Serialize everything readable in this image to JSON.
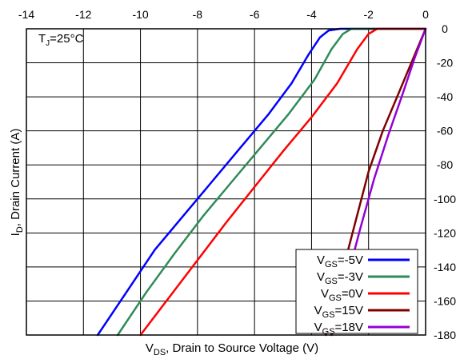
{
  "chart_data": {
    "type": "line",
    "title": "",
    "annotation": "T_J=25°C",
    "annotation_parts": {
      "base": "T",
      "sub": "J",
      "rest": "=25°C"
    },
    "xlabel": "V_DS, Drain to Source Voltage (V)",
    "xlabel_parts": {
      "base": "V",
      "sub": "DS",
      "rest": ", Drain to Source Voltage (V)"
    },
    "ylabel": "I_D, Drain Current (A)",
    "ylabel_parts": {
      "base": "I",
      "sub": "D",
      "rest": ", Drain Current (A)"
    },
    "xlim": [
      -14,
      0
    ],
    "ylim": [
      -180,
      0
    ],
    "x_ticks": [
      "-14",
      "-12",
      "-10",
      "-8",
      "-6",
      "-4",
      "-2",
      "0"
    ],
    "y_ticks": [
      "0",
      "-20",
      "-40",
      "-60",
      "-80",
      "-100",
      "-120",
      "-140",
      "-160",
      "-180"
    ],
    "x_tick_values": [
      -14,
      -12,
      -10,
      -8,
      -6,
      -4,
      -2,
      0
    ],
    "y_tick_values": [
      0,
      -20,
      -40,
      -60,
      -80,
      -100,
      -120,
      -140,
      -160,
      -180
    ],
    "grid": true,
    "legend_position": "bottom-right",
    "series": [
      {
        "name": "V_GS=-5V",
        "label_parts": {
          "base": "V",
          "sub": "GS",
          "rest": "=-5V"
        },
        "color": "#0000ff",
        "points": [
          [
            -11.5,
            -180
          ],
          [
            -10.5,
            -155
          ],
          [
            -9.5,
            -130
          ],
          [
            -8.5,
            -110
          ],
          [
            -7.5,
            -90
          ],
          [
            -6.5,
            -70
          ],
          [
            -5.5,
            -50
          ],
          [
            -4.7,
            -32
          ],
          [
            -4.1,
            -15
          ],
          [
            -3.7,
            -5
          ],
          [
            -3.4,
            -1
          ],
          [
            -3.0,
            0
          ],
          [
            0,
            0
          ]
        ]
      },
      {
        "name": "V_GS=-3V",
        "label_parts": {
          "base": "V",
          "sub": "GS",
          "rest": "=-3V"
        },
        "color": "#2e8b57",
        "points": [
          [
            -10.8,
            -180
          ],
          [
            -9.8,
            -155
          ],
          [
            -8.8,
            -132
          ],
          [
            -7.8,
            -110
          ],
          [
            -6.8,
            -90
          ],
          [
            -5.8,
            -70
          ],
          [
            -4.8,
            -50
          ],
          [
            -3.9,
            -30
          ],
          [
            -3.3,
            -12
          ],
          [
            -2.9,
            -3
          ],
          [
            -2.6,
            0
          ],
          [
            0,
            0
          ]
        ]
      },
      {
        "name": "V_GS=0V",
        "label_parts": {
          "base": "V",
          "sub": "GS",
          "rest": "=0V"
        },
        "color": "#ff0000",
        "points": [
          [
            -10.0,
            -180
          ],
          [
            -9.0,
            -158
          ],
          [
            -8.0,
            -136
          ],
          [
            -7.0,
            -114
          ],
          [
            -6.0,
            -93
          ],
          [
            -5.0,
            -72
          ],
          [
            -4.0,
            -52
          ],
          [
            -3.1,
            -32
          ],
          [
            -2.4,
            -12
          ],
          [
            -2.0,
            -3
          ],
          [
            -1.7,
            0
          ],
          [
            0,
            0
          ]
        ]
      },
      {
        "name": "V_GS=15V",
        "label_parts": {
          "base": "V",
          "sub": "GS",
          "rest": "=15V"
        },
        "color": "#800000",
        "points": [
          [
            -3.5,
            -180
          ],
          [
            -3.0,
            -148
          ],
          [
            -2.5,
            -116
          ],
          [
            -2.0,
            -84
          ],
          [
            -1.5,
            -60
          ],
          [
            -1.0,
            -40
          ],
          [
            -0.5,
            -20
          ],
          [
            0,
            0
          ]
        ]
      },
      {
        "name": "V_GS=18V",
        "label_parts": {
          "base": "V",
          "sub": "GS",
          "rest": "=18V"
        },
        "color": "#9400d3",
        "points": [
          [
            -3.3,
            -180
          ],
          [
            -2.8,
            -150
          ],
          [
            -2.3,
            -118
          ],
          [
            -1.8,
            -88
          ],
          [
            -1.3,
            -62
          ],
          [
            -0.8,
            -38
          ],
          [
            -0.4,
            -18
          ],
          [
            0,
            0
          ]
        ]
      }
    ]
  }
}
